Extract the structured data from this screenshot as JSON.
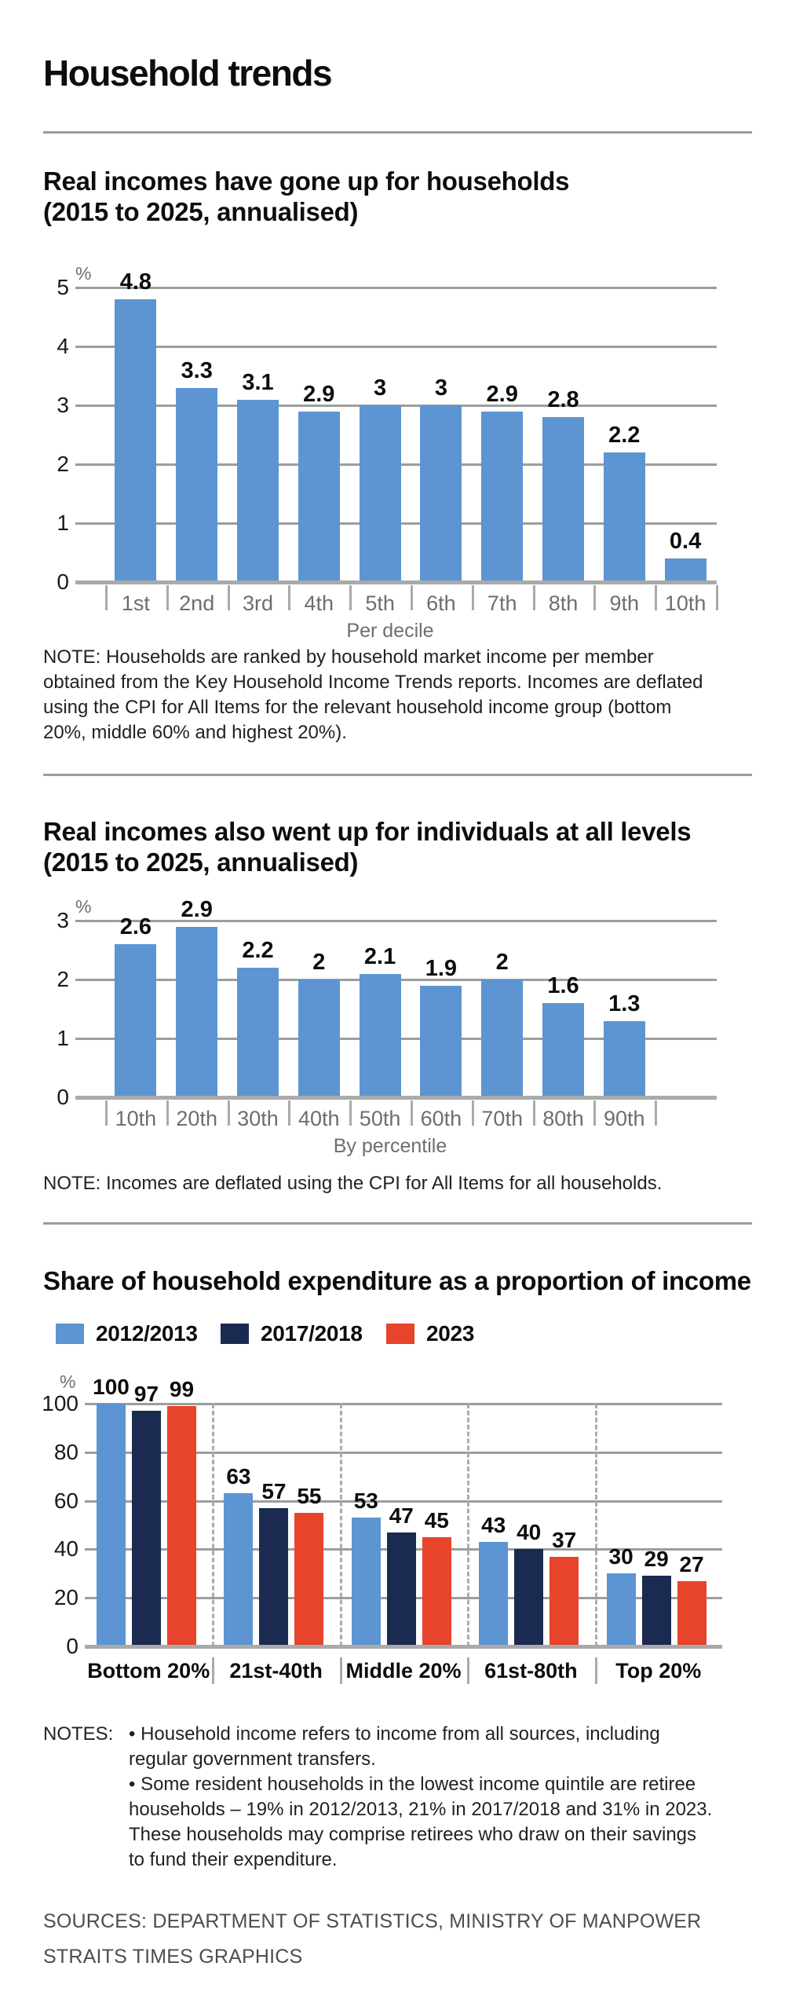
{
  "title": "Household trends",
  "colors": {
    "bar_blue": "#5c95d2",
    "navy": "#1b2a50",
    "red": "#e8432b",
    "grid": "#9c9da0",
    "axis": "#a9aaac",
    "muted_text": "#6d6e71",
    "heading_text": "#0d0d0d",
    "note_text": "#231f20",
    "source_text": "#4d4d4f"
  },
  "chart_data": [
    {
      "id": "household-real-income",
      "type": "bar",
      "title_lines": [
        "Real incomes have gone up for households",
        "(2015 to 2025, annualised)"
      ],
      "unit_label": "%",
      "categories": [
        "1st",
        "2nd",
        "3rd",
        "4th",
        "5th",
        "6th",
        "7th",
        "8th",
        "9th",
        "10th"
      ],
      "values": [
        4.8,
        3.3,
        3.1,
        2.9,
        3,
        3,
        2.9,
        2.8,
        2.2,
        0.4
      ],
      "value_labels": [
        "4.8",
        "3.3",
        "3.1",
        "2.9",
        "3",
        "3",
        "2.9",
        "2.8",
        "2.2",
        "0.4"
      ],
      "xlabel": "Per decile",
      "ylim": [
        0,
        5
      ],
      "yticks": [
        0,
        1,
        2,
        3,
        4,
        5
      ],
      "grid": true,
      "legend_position": "none",
      "note_lines": [
        "NOTE: Households are ranked by household market income per member",
        "obtained from the Key Household Income Trends reports. Incomes are deflated",
        "using the CPI for All Items for the relevant household income group (bottom",
        "20%, middle 60% and highest 20%)."
      ]
    },
    {
      "id": "individual-real-income",
      "type": "bar",
      "title_lines": [
        "Real incomes also went up for individuals at all levels",
        "(2015 to 2025, annualised)"
      ],
      "unit_label": "%",
      "categories": [
        "10th",
        "20th",
        "30th",
        "40th",
        "50th",
        "60th",
        "70th",
        "80th",
        "90th"
      ],
      "values": [
        2.6,
        2.9,
        2.2,
        2,
        2.1,
        1.9,
        2,
        1.6,
        1.3
      ],
      "value_labels": [
        "2.6",
        "2.9",
        "2.2",
        "2",
        "2.1",
        "1.9",
        "2",
        "1.6",
        "1.3"
      ],
      "xlabel": "By percentile",
      "ylim": [
        0,
        3
      ],
      "yticks": [
        0,
        1,
        2,
        3
      ],
      "grid": true,
      "legend_position": "none",
      "note_lines": [
        "NOTE: Incomes are deflated using the CPI for All Items for all households."
      ]
    },
    {
      "id": "expenditure-share",
      "type": "grouped-bar",
      "title_lines": [
        "Share of household expenditure as a proportion of income"
      ],
      "unit_label": "%",
      "categories": [
        "Bottom 20%",
        "21st-40th",
        "Middle 20%",
        "61st-80th",
        "Top 20%"
      ],
      "series": [
        {
          "name": "2012/2013",
          "color": "#5c95d2",
          "values": [
            100,
            63,
            53,
            43,
            30
          ],
          "value_labels": [
            "100",
            "63",
            "53",
            "43",
            "30"
          ]
        },
        {
          "name": "2017/2018",
          "color": "#1b2a50",
          "values": [
            97,
            57,
            47,
            40,
            29
          ],
          "value_labels": [
            "97",
            "57",
            "47",
            "40",
            "29"
          ]
        },
        {
          "name": "2023",
          "color": "#e8432b",
          "values": [
            99,
            55,
            45,
            37,
            27
          ],
          "value_labels": [
            "99",
            "55",
            "45",
            "37",
            "27"
          ]
        }
      ],
      "ylim": [
        0,
        100
      ],
      "yticks": [
        0,
        20,
        40,
        60,
        80,
        100
      ],
      "grid": true,
      "legend_position": "top",
      "notes_label": "NOTES:",
      "note_lines": [
        "• Household income refers to income from all sources, including",
        "regular government transfers.",
        "• Some resident households in the lowest income quintile are retiree",
        "households – 19% in 2012/2013, 21% in 2017/2018 and 31% in 2023.",
        "These households may comprise retirees who draw on their savings",
        "to fund their expenditure."
      ]
    }
  ],
  "sources_lines": [
    "SOURCES: DEPARTMENT OF STATISTICS, MINISTRY OF MANPOWER",
    "STRAITS TIMES GRAPHICS"
  ]
}
